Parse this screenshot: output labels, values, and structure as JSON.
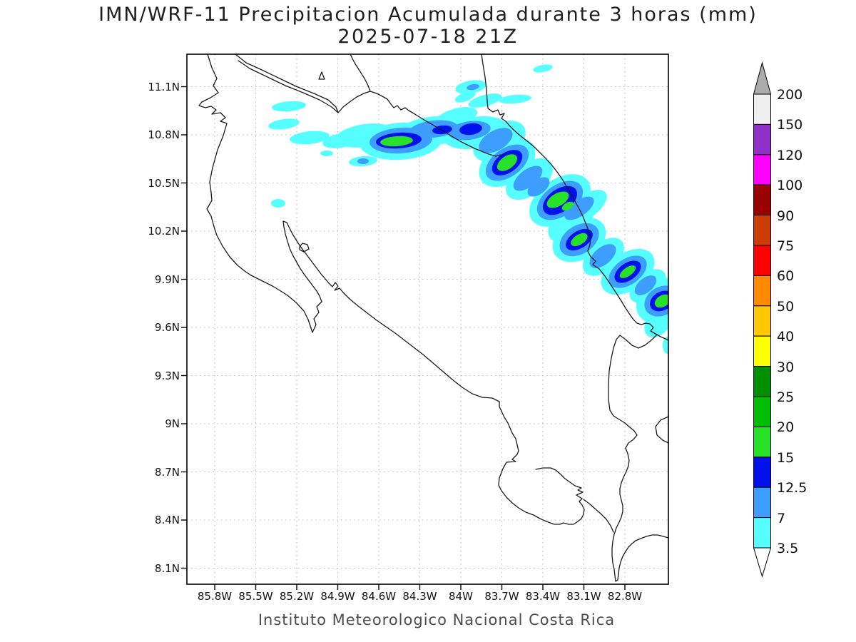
{
  "title": {
    "line1": "IMN/WRF-11 Precipitacion Acumulada durante 3 horas (mm)",
    "line2": "2025-07-18 21Z"
  },
  "footer": "Instituto Meteorologico Nacional Costa Rica",
  "axes": {
    "lat_ticks": [
      "11.1N",
      "10.8N",
      "10.5N",
      "10.2N",
      "9.9N",
      "9.6N",
      "9.3N",
      "9N",
      "8.7N",
      "8.4N",
      "8.1N"
    ],
    "lon_ticks": [
      "85.8W",
      "85.5W",
      "85.2W",
      "84.9W",
      "84.6W",
      "84.3W",
      "84W",
      "83.7W",
      "83.4W",
      "83.1W",
      "82.8W"
    ]
  },
  "colorbar": {
    "labels": [
      "200",
      "150",
      "120",
      "100",
      "90",
      "75",
      "60",
      "50",
      "40",
      "30",
      "25",
      "20",
      "15",
      "12.5",
      "7",
      "3.5"
    ],
    "segment_colors_top_to_bottom": [
      "#F0F0F0",
      "#9130C9",
      "#FF00FF",
      "#9B0000",
      "#CC3E00",
      "#FF0000",
      "#FF8A00",
      "#FFC800",
      "#FFFF00",
      "#008F00",
      "#00BE00",
      "#28E228",
      "#0011EB",
      "#3E9EFF",
      "#55FFFF"
    ],
    "above_max_color": "#ABABAB",
    "below_min_color": "#FFFFFF"
  },
  "map_style": {
    "grid_color": "#b8b8b8",
    "coast_color": "#1a1a1a",
    "frame_color": "#000000",
    "level_colors": {
      "cyan": "#55FFFF",
      "blue": "#3E9EFF",
      "darkblue": "#0011EB",
      "green": "#28E228"
    }
  },
  "precip_field": {
    "comment_levels_mm": {
      "cyan": "3.5-7",
      "blue": "7-12.5",
      "darkblue": "12.5-15",
      "green": "15-20"
    },
    "cyan": [
      [
        562,
        198,
        58,
        26,
        -4
      ],
      [
        512,
        190,
        42,
        16,
        -8
      ],
      [
        610,
        183,
        52,
        20,
        -5
      ],
      [
        666,
        186,
        46,
        22,
        -10
      ],
      [
        700,
        198,
        40,
        24,
        -30
      ],
      [
        711,
        228,
        44,
        28,
        -35
      ],
      [
        742,
        251,
        38,
        22,
        -38
      ],
      [
        785,
        281,
        48,
        30,
        -35
      ],
      [
        818,
        292,
        38,
        17,
        -35
      ],
      [
        800,
        312,
        36,
        22,
        -38
      ],
      [
        812,
        336,
        40,
        28,
        -30
      ],
      [
        846,
        360,
        34,
        20,
        -40
      ],
      [
        880,
        381,
        42,
        26,
        -35
      ],
      [
        908,
        401,
        30,
        18,
        -40
      ],
      [
        928,
        422,
        38,
        30,
        -30
      ],
      [
        923,
        452,
        24,
        16,
        -50
      ],
      [
        405,
        149,
        24,
        7,
        -5
      ],
      [
        398,
        174,
        22,
        7,
        -8
      ],
      [
        434,
        193,
        28,
        9,
        -6
      ],
      [
        467,
        201,
        13,
        5,
        0
      ],
      [
        509,
        226,
        20,
        7,
        -5
      ],
      [
        390,
        285,
        10,
        6,
        0
      ],
      [
        458,
        215,
        9,
        4,
        0
      ],
      [
        660,
        122,
        22,
        9,
        -10
      ],
      [
        680,
        141,
        24,
        8,
        -15
      ],
      [
        722,
        139,
        23,
        6,
        -5
      ],
      [
        761,
        96,
        14,
        5,
        -10
      ],
      [
        652,
        136,
        15,
        6,
        -20
      ],
      [
        936,
        484,
        7,
        12,
        0
      ],
      [
        640,
        164,
        30,
        12,
        -15
      ],
      [
        478,
        197,
        26,
        10,
        -10
      ]
    ],
    "blue": [
      [
        562,
        197,
        44,
        18,
        -4
      ],
      [
        608,
        181,
        34,
        12,
        -6
      ],
      [
        658,
        183,
        30,
        13,
        -8
      ],
      [
        695,
        197,
        26,
        14,
        -30
      ],
      [
        711,
        228,
        34,
        20,
        -35
      ],
      [
        740,
        250,
        24,
        12,
        -38
      ],
      [
        785,
        281,
        36,
        22,
        -35
      ],
      [
        812,
        292,
        24,
        11,
        -35
      ],
      [
        812,
        336,
        30,
        20,
        -32
      ],
      [
        845,
        359,
        22,
        12,
        -40
      ],
      [
        880,
        381,
        30,
        18,
        -35
      ],
      [
        928,
        422,
        26,
        20,
        -30
      ],
      [
        663,
        122,
        9,
        4,
        -10
      ],
      [
        509,
        226,
        8,
        4,
        0
      ],
      [
        905,
        400,
        18,
        10,
        -40
      ],
      [
        755,
        262,
        18,
        10,
        -38
      ]
    ],
    "darkblue": [
      [
        559,
        197,
        32,
        11,
        -4
      ],
      [
        620,
        182,
        14,
        6,
        -6
      ],
      [
        660,
        181,
        16,
        8,
        -8
      ],
      [
        711,
        228,
        24,
        14,
        -35
      ],
      [
        785,
        281,
        27,
        16,
        -35
      ],
      [
        812,
        336,
        21,
        12,
        -32
      ],
      [
        880,
        381,
        21,
        12,
        -35
      ],
      [
        928,
        422,
        18,
        13,
        -30
      ]
    ],
    "green": [
      [
        556,
        198,
        23,
        7,
        -4
      ],
      [
        711,
        228,
        16,
        9,
        -35
      ],
      [
        782,
        280,
        17,
        9,
        -30
      ],
      [
        796,
        289,
        9,
        5,
        -30
      ],
      [
        812,
        336,
        13,
        7,
        -32
      ],
      [
        880,
        381,
        13,
        6,
        -35
      ],
      [
        929,
        422,
        12,
        8,
        -30
      ]
    ]
  },
  "map_geometry": {
    "coast_paths": [
      "M291,76 L297,95 304,110 299,120 306,130 295,137 283,143 279,148 288,151 296,149 303,154 297,160 309,158 316,165 309,170 318,173 313,190 305,210 298,235 294,255 296,270 297,281 290,293 296,303 300,318 304,330 312,345 322,360 333,372 343,380 352,386 362,391 372,396 382,401 392,407 403,414 415,424 426,436 432,448 436,460 438,466 443,455 440,447 447,438 444,430 451,423 448,415 444,408 438,400 432,392 426,384 420,375 415,366 410,357 406,348 403,338 400,328 398,318 397,310 402,312 406,320 410,328 415,336 420,344 426,352 432,360 438,368 444,376 450,384 456,391 461,397 466,402 470,396 474,401 469,407 476,404 481,410 490,419 502,429 515,439 528,449 541,458 554,467 567,477 580,487 593,497 606,508 620,520 634,532 648,543 662,552 676,557 690,558 700,563 700,570 707,585 712,593 718,607 723,615 727,632 725,637 718,644 723,647 710,648 705,657 700,670 699,680 703,688 710,697 718,705 727,712 737,718 748,722 757,727 766,731 777,735 785,735 790,733 797,735 804,735 810,731 815,727 818,721 819,714 816,708 812,703 816,699 808,694 817,690 810,687 815,684 806,681 799,676 792,671 786,665 779,659 772,656 761,656 751,658",
      "M818,700 L826,706 834,713 842,720 850,728 856,737 860,746",
      "M921,469 L913,477 904,484 895,488 886,484 877,476 869,470 864,476 860,488 857,502 854,520 853,540 853,560 855,575 860,583 868,588 876,593 883,599 889,604 893,610 888,616 881,621 877,628 880,636 882,645 881,653 878,661 874,669 871,677 869,685 869,693 871,701 873,709 873,717 871,725 868,732 864,740 861,749 859,759 858,769 858,779 859,789 861,798 862,807 863,815 866,813 867,805 868,796 870,788 873,780 877,773 881,767 886,762 891,758 898,755 906,752 914,750 922,750 930,752 937,754",
      "M675,76 L677,90 680,108 682,126 683,142 684,152 691,157 698,154 701,161 707,159 703,166 709,170 714,176 721,183 729,190 738,197 748,205 757,214 766,223 774,232 781,241 788,251 794,261 800,271 806,282 812,293 817,303 821,313 825,323 828,333 827,343 824,352 828,360 835,366 831,371 840,377 848,387 856,399 864,411 871,422 877,432 883,441 888,448 893,453 899,455 905,453 911,454 916,459 912,464 919,468 926,472 933,475 937,477",
      "M330,76 L345,88 365,97 390,109 415,121 440,131 460,140 471,150 474,158 481,150 490,143 500,136 510,131 519,128 528,131 536,135 543,139 548,146 552,151 557,148 562,154 568,151 573,155 580,159 588,164 596,169 605,174 615,180 625,186 635,192 645,198 655,203 665,208 675,212 685,216 695,219 702,217",
      "M334,85 L350,96 375,108 400,120 425,130 448,140 465,150 474,158",
      "M491,76 L497,88 504,99 511,110 516,120 519,128",
      "M447,111 L451,101 455,111 Z",
      "M937,584 L926,589 919,598 921,610 929,617 937,621",
      "M420,346 L424,341 431,343 433,349 426,353 420,350 Z"
    ]
  }
}
